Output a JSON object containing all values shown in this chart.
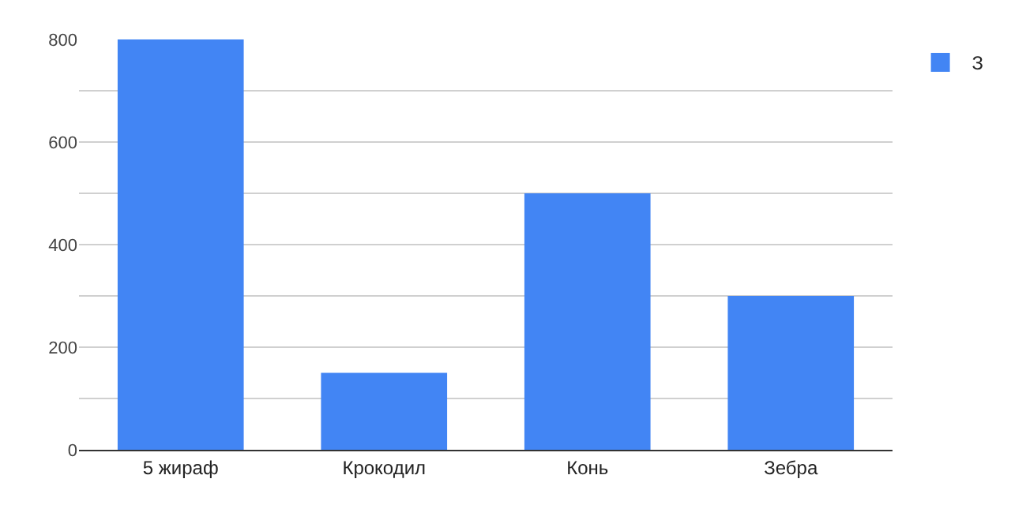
{
  "chart_data": {
    "type": "bar",
    "categories": [
      "5 жираф",
      "Крокодил",
      "Конь",
      "Зебра"
    ],
    "series": [
      {
        "name": "З",
        "color": "#4285f4",
        "values": [
          800,
          150,
          500,
          300
        ]
      }
    ],
    "ylim": [
      0,
      800
    ],
    "yticks": [
      0,
      {
        "value": 100,
        "label": null
      },
      200,
      {
        "value": 300,
        "label": null
      },
      400,
      {
        "value": 500,
        "label": null
      },
      600,
      {
        "value": 700,
        "label": null
      },
      800
    ],
    "grid": "y",
    "legend": "top right"
  }
}
